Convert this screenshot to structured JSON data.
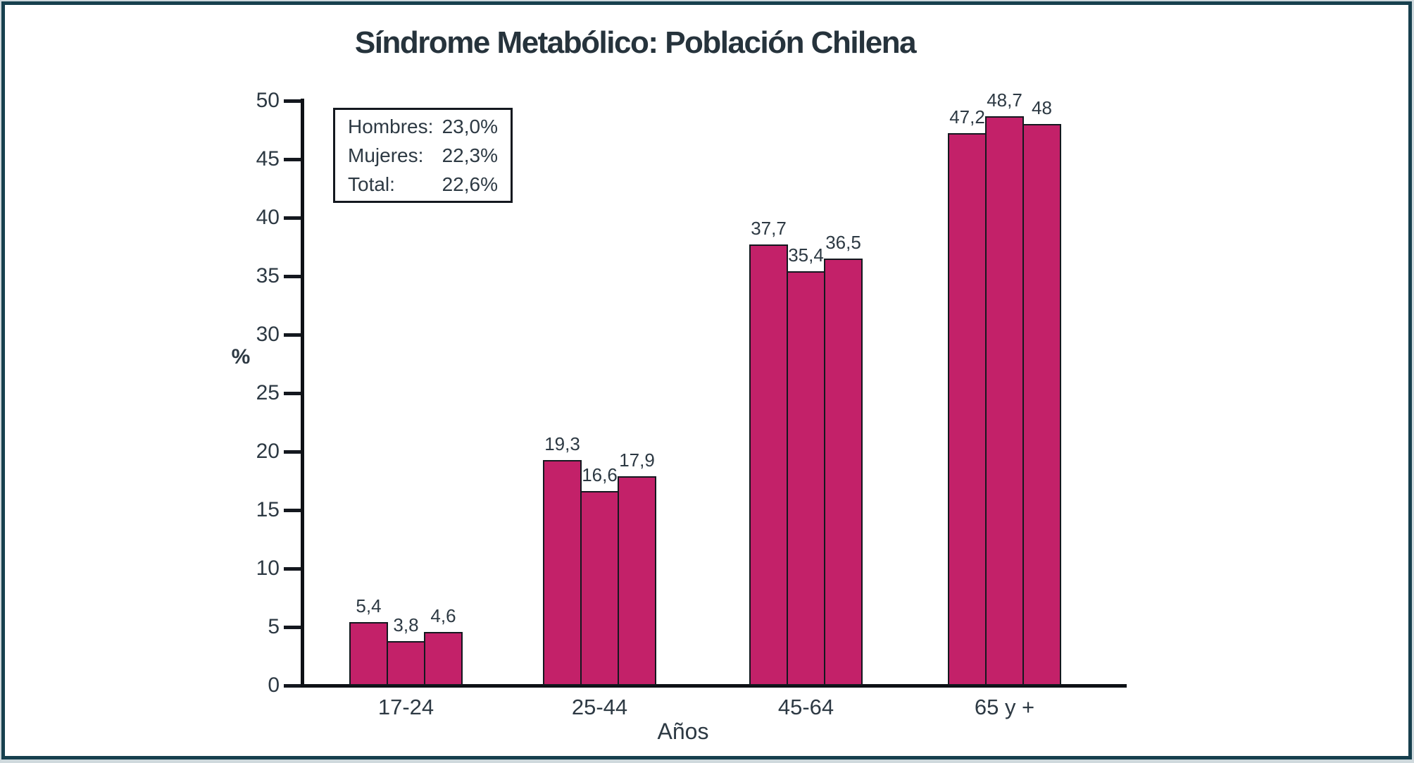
{
  "title": "Síndrome Metabólico: Población Chilena",
  "frame": {
    "border_color": "#17404e",
    "background": "#ffffff"
  },
  "stats_box": {
    "rows": [
      {
        "label": "Hombres:",
        "value": "23,0%"
      },
      {
        "label": "Mujeres:",
        "value": "22,3%"
      },
      {
        "label": "Total:",
        "value": "22,6%"
      }
    ]
  },
  "chart_data": {
    "type": "bar",
    "title": "Síndrome Metabólico: Población Chilena",
    "xlabel": "Años",
    "ylabel": "%",
    "ylim": [
      0,
      50
    ],
    "ytick_labels": [
      "0",
      "5",
      "10",
      "15",
      "20",
      "25",
      "30",
      "35",
      "40",
      "45",
      "50"
    ],
    "grid": false,
    "legend_position": "none",
    "categories": [
      "17-24",
      "25-44",
      "45-64",
      "65 y +"
    ],
    "series": [
      {
        "name": "Hombres",
        "values": [
          5.4,
          19.3,
          37.7,
          47.2
        ]
      },
      {
        "name": "Mujeres",
        "values": [
          3.8,
          16.6,
          35.4,
          48.7
        ]
      },
      {
        "name": "Total",
        "values": [
          4.6,
          17.9,
          36.5,
          48.0
        ]
      }
    ],
    "value_labels": [
      [
        "5,4",
        "3,8",
        "4,6"
      ],
      [
        "19,3",
        "16,6",
        "17,9"
      ],
      [
        "37,7",
        "35,4",
        "36,5"
      ],
      [
        "47,2",
        "48,7",
        "48"
      ]
    ],
    "bar_color": "#c32169",
    "bar_border_color": "#14181f"
  }
}
